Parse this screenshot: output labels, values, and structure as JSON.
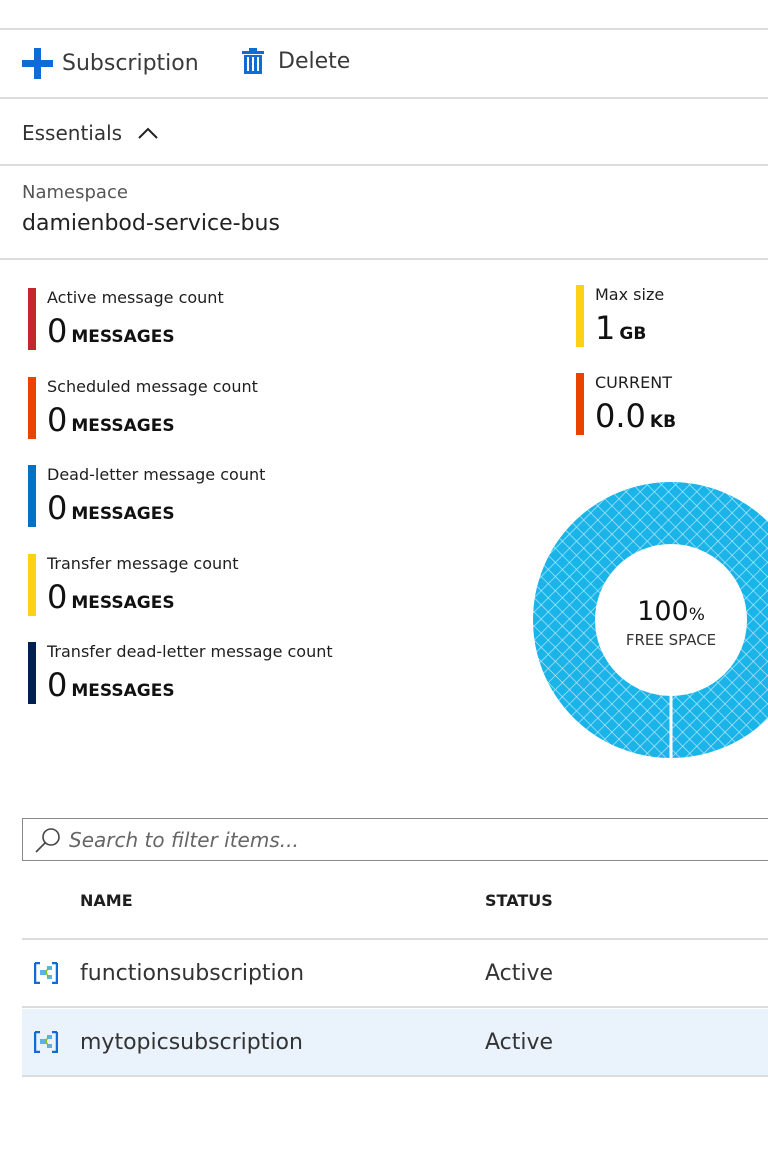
{
  "toolbar": {
    "add_label": "Subscription",
    "delete_label": "Delete"
  },
  "essentials": {
    "label": "Essentials",
    "namespace_label": "Namespace",
    "namespace_value": "damienbod-service-bus"
  },
  "metrics": [
    {
      "label": "Active message count",
      "value": "0",
      "unit": "MESSAGES",
      "color": "#c4262e"
    },
    {
      "label": "Scheduled message count",
      "value": "0",
      "unit": "MESSAGES",
      "color": "#ea4300"
    },
    {
      "label": "Dead-letter message count",
      "value": "0",
      "unit": "MESSAGES",
      "color": "#0072c6"
    },
    {
      "label": "Transfer message count",
      "value": "0",
      "unit": "MESSAGES",
      "color": "#fcd116"
    },
    {
      "label": "Transfer dead-letter message count",
      "value": "0",
      "unit": "MESSAGES",
      "color": "#002050"
    }
  ],
  "size": {
    "max_label": "Max size",
    "max_value": "1",
    "max_unit": "GB",
    "max_color": "#fcd116",
    "current_label": "CURRENT",
    "current_value": "0.0",
    "current_unit": "KB",
    "current_color": "#ea4300"
  },
  "donut": {
    "percent": "100",
    "percent_sign": "%",
    "label": "FREE SPACE",
    "free_fraction": 1.0,
    "color": "#1ab4e8"
  },
  "search": {
    "placeholder": "Search to filter items..."
  },
  "table": {
    "headers": {
      "name": "NAME",
      "status": "STATUS"
    },
    "rows": [
      {
        "name": "functionsubscription",
        "status": "Active"
      },
      {
        "name": "mytopicsubscription",
        "status": "Active",
        "selected": true
      }
    ]
  }
}
